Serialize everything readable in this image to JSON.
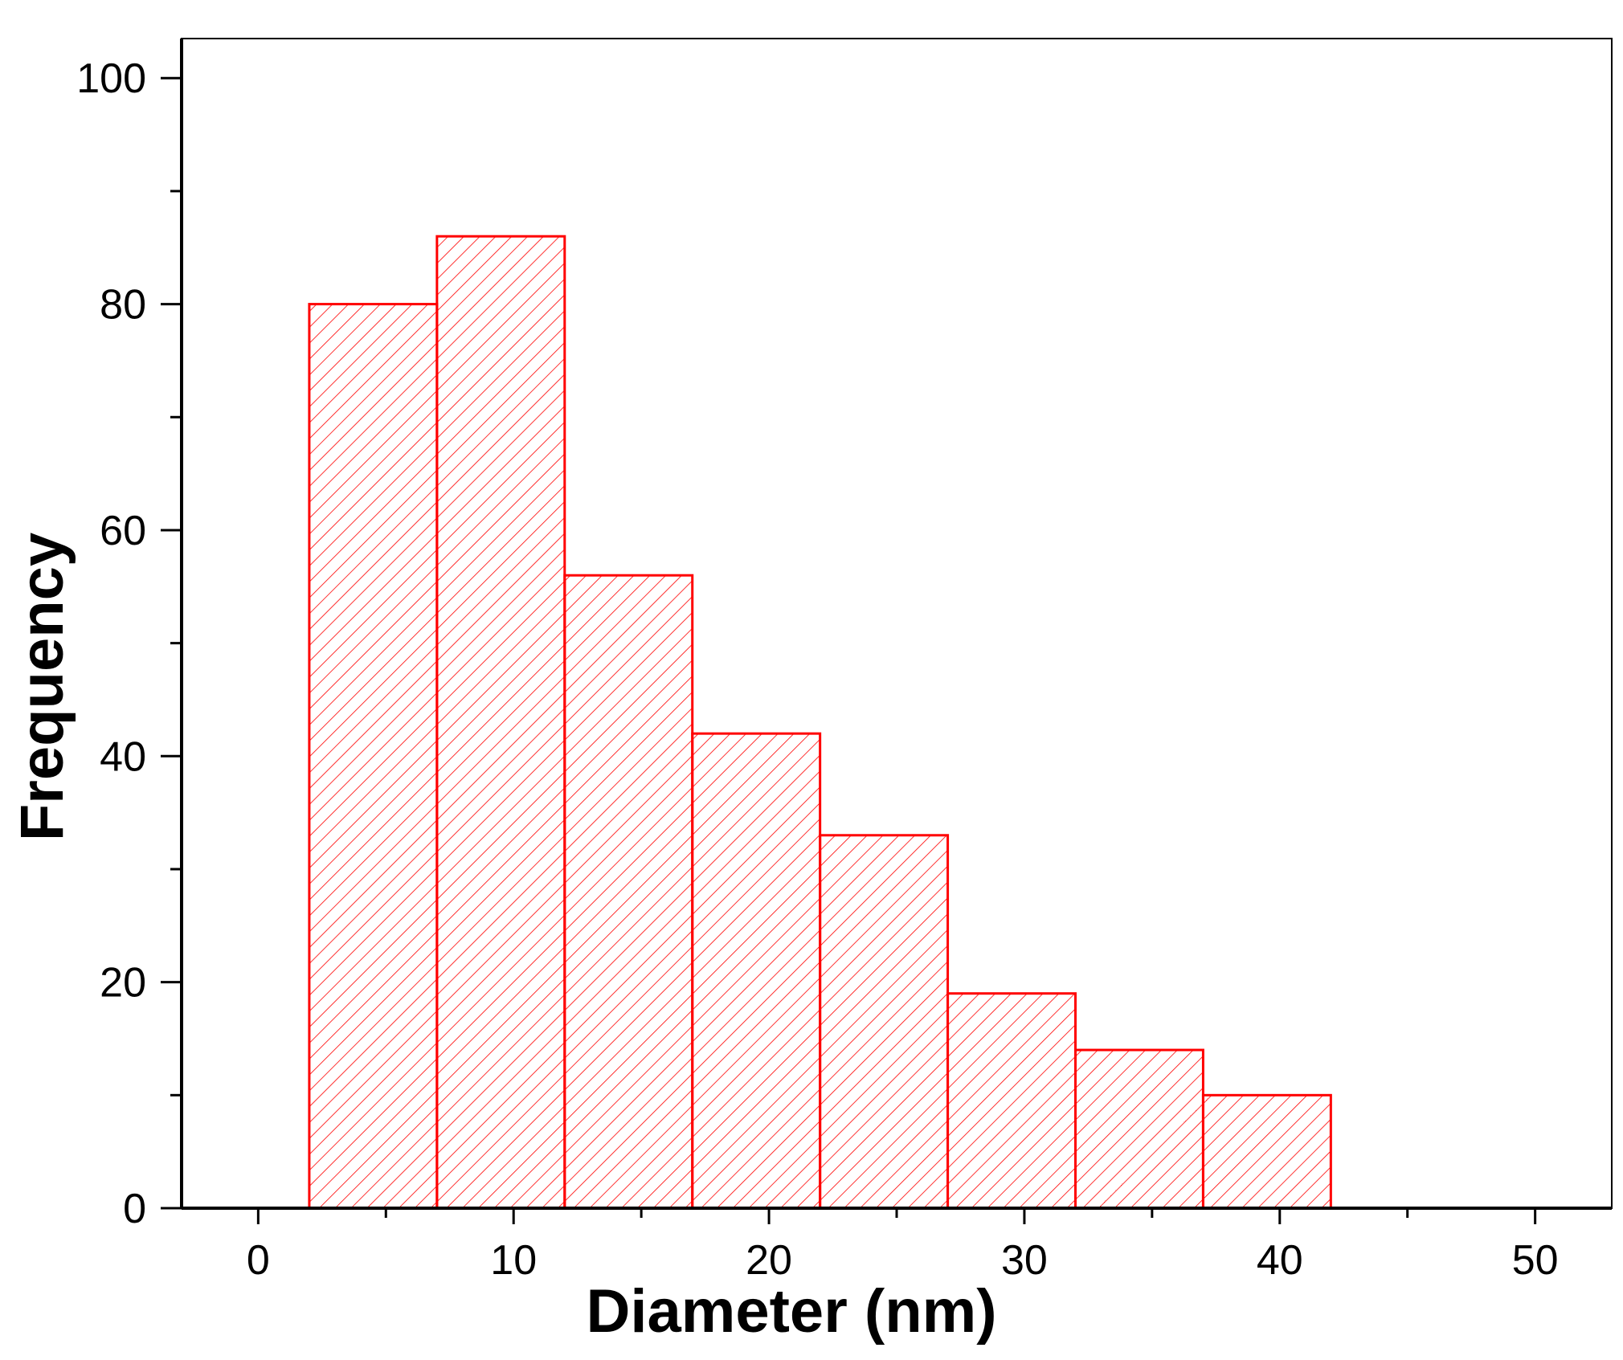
{
  "chart_data": {
    "type": "bar",
    "histogram": true,
    "title": "",
    "xlabel": "Diameter (nm)",
    "ylabel": "Frequency",
    "bins": [
      {
        "x0": 2,
        "x1": 7,
        "value": 80
      },
      {
        "x0": 7,
        "x1": 12,
        "value": 86
      },
      {
        "x0": 12,
        "x1": 17,
        "value": 56
      },
      {
        "x0": 17,
        "x1": 22,
        "value": 42
      },
      {
        "x0": 22,
        "x1": 27,
        "value": 33
      },
      {
        "x0": 27,
        "x1": 32,
        "value": 19
      },
      {
        "x0": 32,
        "x1": 37,
        "value": 14
      },
      {
        "x0": 37,
        "x1": 42,
        "value": 10
      }
    ],
    "xlim": [
      -3,
      53
    ],
    "ylim": [
      0,
      103.5
    ],
    "xticks": [
      0,
      10,
      20,
      30,
      40,
      50
    ],
    "xtick_labels": [
      "0",
      "10",
      "20",
      "30",
      "40",
      "50"
    ],
    "yticks": [
      0,
      20,
      40,
      60,
      80,
      100
    ],
    "ytick_labels": [
      "0",
      "20",
      "40",
      "60",
      "80",
      "100"
    ],
    "grid": false,
    "legend": "none",
    "bar_color": "#ff0000",
    "fill_pattern": "diagonal-hatch"
  }
}
